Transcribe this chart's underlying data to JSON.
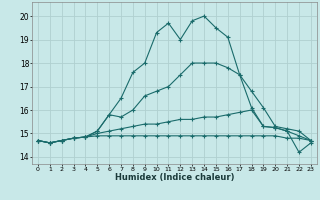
{
  "xlabel": "Humidex (Indice chaleur)",
  "background_color": "#c8e8e8",
  "grid_color": "#b0d0d0",
  "line_color": "#1a6b6b",
  "x_ticks": [
    0,
    1,
    2,
    3,
    4,
    5,
    6,
    7,
    8,
    9,
    10,
    11,
    12,
    13,
    14,
    15,
    16,
    17,
    18,
    19,
    20,
    21,
    22,
    23
  ],
  "y_ticks": [
    14,
    15,
    16,
    17,
    18,
    19,
    20
  ],
  "xlim": [
    -0.5,
    23.5
  ],
  "ylim": [
    13.7,
    20.6
  ],
  "lines": [
    {
      "x": [
        0,
        1,
        2,
        3,
        4,
        5,
        6,
        7,
        8,
        9,
        10,
        11,
        12,
        13,
        14,
        15,
        16,
        17,
        18,
        19,
        20,
        21,
        22,
        23
      ],
      "y": [
        14.7,
        14.6,
        14.7,
        14.8,
        14.85,
        14.9,
        14.9,
        14.9,
        14.9,
        14.9,
        14.9,
        14.9,
        14.9,
        14.9,
        14.9,
        14.9,
        14.9,
        14.9,
        14.9,
        14.9,
        14.9,
        14.8,
        14.8,
        14.7
      ]
    },
    {
      "x": [
        0,
        1,
        2,
        3,
        4,
        5,
        6,
        7,
        8,
        9,
        10,
        11,
        12,
        13,
        14,
        15,
        16,
        17,
        18,
        19,
        20,
        21,
        22,
        23
      ],
      "y": [
        14.7,
        14.6,
        14.7,
        14.8,
        14.85,
        15.0,
        15.1,
        15.2,
        15.3,
        15.4,
        15.4,
        15.5,
        15.6,
        15.6,
        15.7,
        15.7,
        15.8,
        15.9,
        16.0,
        15.3,
        15.25,
        15.1,
        14.9,
        14.7
      ]
    },
    {
      "x": [
        0,
        1,
        2,
        3,
        4,
        5,
        6,
        7,
        8,
        9,
        10,
        11,
        12,
        13,
        14,
        15,
        16,
        17,
        18,
        19,
        20,
        21,
        22,
        23
      ],
      "y": [
        14.7,
        14.6,
        14.7,
        14.8,
        14.85,
        15.1,
        15.8,
        15.7,
        16.0,
        16.6,
        16.8,
        17.0,
        17.5,
        18.0,
        18.0,
        18.0,
        17.8,
        17.5,
        16.8,
        16.1,
        15.3,
        15.2,
        15.1,
        14.7
      ]
    },
    {
      "x": [
        0,
        1,
        2,
        3,
        4,
        5,
        6,
        7,
        8,
        9,
        10,
        11,
        12,
        13,
        14,
        15,
        16,
        17,
        18,
        19,
        20,
        21,
        22,
        23
      ],
      "y": [
        14.7,
        14.6,
        14.7,
        14.8,
        14.85,
        15.1,
        15.8,
        16.5,
        17.6,
        18.0,
        19.3,
        19.7,
        19.0,
        19.8,
        20.0,
        19.5,
        19.1,
        17.5,
        16.1,
        15.3,
        15.25,
        15.1,
        14.2,
        14.6
      ]
    }
  ]
}
